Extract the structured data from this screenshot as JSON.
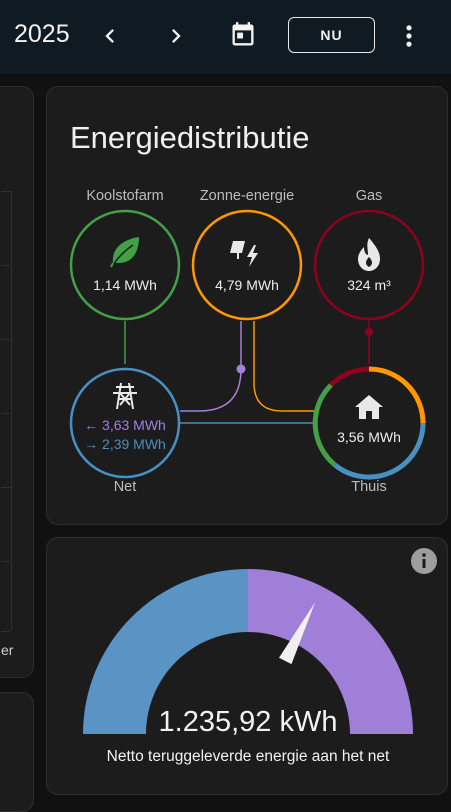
{
  "header": {
    "year": "2025",
    "today_label": "NU",
    "icons": [
      "chevron-left-icon",
      "chevron-right-icon",
      "calendar-icon",
      "more-vertical-icon"
    ]
  },
  "left_panel": {
    "partial_text": "er"
  },
  "energy_distribution": {
    "title": "Energiedistributie",
    "nodes": {
      "fossil": {
        "label": "Koolstofarm",
        "value": "1,14 MWh",
        "icon": "leaf-icon",
        "color": "#43a047"
      },
      "solar": {
        "label": "Zonne-energie",
        "value": "4,79 MWh",
        "icon": "solar-power-icon",
        "color": "#ff9800"
      },
      "gas": {
        "label": "Gas",
        "value": "324 m³",
        "icon": "fire-icon",
        "color": "#8e021b"
      },
      "grid": {
        "label": "Net",
        "value_in": "← 3,63 MWh",
        "value_out": "→ 2,39 MWh",
        "icon": "transmission-tower-icon",
        "color": "#488fc2",
        "return_color": "#a280db"
      },
      "home": {
        "label": "Thuis",
        "value": "3,56 MWh",
        "icon": "home-icon"
      }
    }
  },
  "gauge": {
    "value_text": "1.235,92 kWh",
    "caption": "Netto teruggeleverde energie aan het net",
    "info_icon": "info-icon",
    "needle_fraction": 0.65,
    "colors": {
      "consumption": "#5a94c4",
      "return": "#a07fd8",
      "needle": "#f0f0f0"
    }
  }
}
